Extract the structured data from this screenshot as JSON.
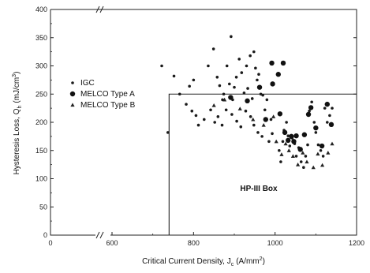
{
  "chart_data": {
    "type": "scatter",
    "xlabel": "Critical Current Density, J",
    "xlabel_sub": "c",
    "xlabel_unit": "(A/mm",
    "xlabel_unit_sup": "2",
    "xlabel_unit_end": ")",
    "ylabel": "Hysteresis Loss, Q",
    "ylabel_sub": "h",
    "ylabel_unit": "(mJ/cm",
    "ylabel_unit_sup": "3",
    "ylabel_unit_end": ")",
    "xlim": [
      0,
      1200
    ],
    "ylim": [
      0,
      400
    ],
    "x_ticks": [
      "0",
      "600",
      "800",
      "1000",
      "1200"
    ],
    "y_ticks": [
      "0",
      "50",
      "100",
      "150",
      "200",
      "250",
      "300",
      "350",
      "400"
    ],
    "x_axis_break": true,
    "box_label": "HP-III Box",
    "box_region": {
      "x_min": 740,
      "y_max": 250
    },
    "legend_placement": "left-middle",
    "series": [
      {
        "name": "IGC",
        "marker": "small-dot",
        "points": [
          [
            722,
            300
          ],
          [
            737,
            182
          ],
          [
            752,
            282
          ],
          [
            790,
            264
          ],
          [
            800,
            275
          ],
          [
            836,
            300
          ],
          [
            849,
            330
          ],
          [
            858,
            280
          ],
          [
            864,
            265
          ],
          [
            871,
            240
          ],
          [
            874,
            250
          ],
          [
            882,
            300
          ],
          [
            888,
            268
          ],
          [
            892,
            352
          ],
          [
            896,
            240
          ],
          [
            900,
            262
          ],
          [
            905,
            280
          ],
          [
            912,
            312
          ],
          [
            918,
            288
          ],
          [
            924,
            252
          ],
          [
            930,
            300
          ],
          [
            933,
            260
          ],
          [
            939,
            318
          ],
          [
            944,
            242
          ],
          [
            948,
            325
          ],
          [
            952,
            296
          ],
          [
            956,
            275
          ],
          [
            960,
            285
          ],
          [
            965,
            250
          ],
          [
            970,
            248
          ],
          [
            975,
            222
          ],
          [
            980,
            240
          ],
          [
            766,
            250
          ],
          [
            782,
            232
          ],
          [
            796,
            220
          ],
          [
            806,
            212
          ],
          [
            812,
            195
          ],
          [
            826,
            205
          ],
          [
            842,
            222
          ],
          [
            852,
            200
          ],
          [
            860,
            210
          ],
          [
            870,
            195
          ],
          [
            880,
            222
          ],
          [
            894,
            214
          ],
          [
            906,
            202
          ],
          [
            916,
            192
          ],
          [
            928,
            220
          ],
          [
            940,
            210
          ],
          [
            948,
            195
          ],
          [
            958,
            182
          ],
          [
            968,
            175
          ],
          [
            985,
            166
          ],
          [
            990,
            205
          ],
          [
            993,
            180
          ],
          [
            1010,
            150
          ],
          [
            1014,
            130
          ],
          [
            1019,
            166
          ],
          [
            1022,
            186
          ],
          [
            1028,
            200
          ],
          [
            1032,
            176
          ],
          [
            1036,
            158
          ],
          [
            1042,
            172
          ],
          [
            1048,
            162
          ],
          [
            1052,
            140
          ],
          [
            1058,
            155
          ],
          [
            1064,
            130
          ],
          [
            1070,
            120
          ],
          [
            1075,
            140
          ],
          [
            1080,
            160
          ],
          [
            1084,
            220
          ],
          [
            1090,
            236
          ],
          [
            1096,
            200
          ],
          [
            1100,
            182
          ],
          [
            1106,
            160
          ],
          [
            1112,
            150
          ],
          [
            1118,
            140
          ],
          [
            1122,
            225
          ],
          [
            1128,
            200
          ],
          [
            1134,
            212
          ],
          [
            1140,
            225
          ]
        ]
      },
      {
        "name": "MELCO Type A",
        "marker": "large-dot",
        "points": [
          [
            891,
            244
          ],
          [
            932,
            238
          ],
          [
            962,
            262
          ],
          [
            992,
            305
          ],
          [
            1008,
            285
          ],
          [
            1012,
            215
          ],
          [
            1024,
            182
          ],
          [
            1040,
            175
          ],
          [
            1046,
            166
          ],
          [
            1052,
            176
          ],
          [
            1062,
            152
          ],
          [
            1072,
            178
          ],
          [
            1082,
            214
          ],
          [
            1100,
            190
          ],
          [
            1115,
            158
          ],
          [
            1128,
            232
          ],
          [
            1138,
            196
          ],
          [
            1088,
            226
          ],
          [
            994,
            268
          ],
          [
            1020,
            305
          ],
          [
            977,
            205
          ],
          [
            1032,
            168
          ]
        ]
      },
      {
        "name": "MELCO Type B",
        "marker": "triangle",
        "points": [
          [
            850,
            230
          ],
          [
            876,
            240
          ],
          [
            914,
            224
          ],
          [
            946,
            205
          ],
          [
            972,
            195
          ],
          [
            996,
            210
          ],
          [
            1003,
            166
          ],
          [
            1016,
            143
          ],
          [
            1026,
            162
          ],
          [
            1034,
            150
          ],
          [
            1044,
            140
          ],
          [
            1056,
            125
          ],
          [
            1068,
            146
          ],
          [
            1078,
            130
          ],
          [
            1094,
            120
          ],
          [
            1105,
            144
          ],
          [
            1116,
            124
          ],
          [
            1130,
            146
          ],
          [
            1140,
            162
          ]
        ]
      }
    ]
  }
}
